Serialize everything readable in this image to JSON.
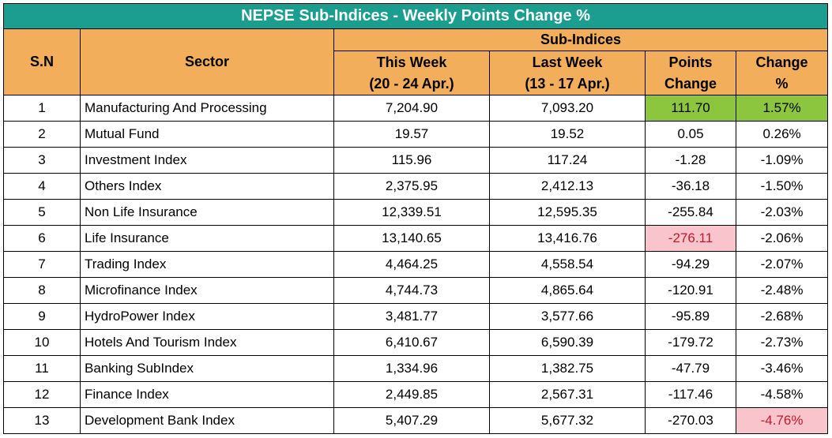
{
  "title": "NEPSE Sub-Indices - Weekly Points Change %",
  "headers": {
    "sn": "S.N",
    "sector": "Sector",
    "group": "Sub-Indices",
    "this_week_l1": "This Week",
    "this_week_l2": "(20 - 24 Apr.)",
    "last_week_l1": "Last Week",
    "last_week_l2": "(13 - 17 Apr.)",
    "points_l1": "Points",
    "points_l2": "Change",
    "change_l1": "Change",
    "change_l2": "%"
  },
  "highlight_colors": {
    "positive_bg": "#8cc63f",
    "negative_bg": "#f9c4cb",
    "negative_text": "#c01a2e",
    "title_bg": "#1b9e8f",
    "header_bg": "#f2ae5a"
  },
  "rows": [
    {
      "sn": "1",
      "sector": "Manufacturing And Processing",
      "this_week": "7,204.90",
      "last_week": "7,093.20",
      "points": "111.70",
      "change": "1.57%",
      "points_hl": "pos",
      "change_hl": "pos"
    },
    {
      "sn": "2",
      "sector": "Mutual Fund",
      "this_week": "19.57",
      "last_week": "19.52",
      "points": "0.05",
      "change": "0.26%",
      "points_hl": "",
      "change_hl": ""
    },
    {
      "sn": "3",
      "sector": "Investment Index",
      "this_week": "115.96",
      "last_week": "117.24",
      "points": "-1.28",
      "change": "-1.09%",
      "points_hl": "",
      "change_hl": ""
    },
    {
      "sn": "4",
      "sector": "Others Index",
      "this_week": "2,375.95",
      "last_week": "2,412.13",
      "points": "-36.18",
      "change": "-1.50%",
      "points_hl": "",
      "change_hl": ""
    },
    {
      "sn": "5",
      "sector": "Non Life Insurance",
      "this_week": "12,339.51",
      "last_week": "12,595.35",
      "points": "-255.84",
      "change": "-2.03%",
      "points_hl": "",
      "change_hl": ""
    },
    {
      "sn": "6",
      "sector": "Life Insurance",
      "this_week": "13,140.65",
      "last_week": "13,416.76",
      "points": "-276.11",
      "change": "-2.06%",
      "points_hl": "neg",
      "change_hl": ""
    },
    {
      "sn": "7",
      "sector": "Trading Index",
      "this_week": "4,464.25",
      "last_week": "4,558.54",
      "points": "-94.29",
      "change": "-2.07%",
      "points_hl": "",
      "change_hl": ""
    },
    {
      "sn": "8",
      "sector": "Microfinance Index",
      "this_week": "4,744.73",
      "last_week": "4,865.64",
      "points": "-120.91",
      "change": "-2.48%",
      "points_hl": "",
      "change_hl": ""
    },
    {
      "sn": "9",
      "sector": "HydroPower Index",
      "this_week": "3,481.77",
      "last_week": "3,577.66",
      "points": "-95.89",
      "change": "-2.68%",
      "points_hl": "",
      "change_hl": ""
    },
    {
      "sn": "10",
      "sector": "Hotels And Tourism Index",
      "this_week": "6,410.67",
      "last_week": "6,590.39",
      "points": "-179.72",
      "change": "-2.73%",
      "points_hl": "",
      "change_hl": ""
    },
    {
      "sn": "11",
      "sector": "Banking SubIndex",
      "this_week": "1,334.96",
      "last_week": "1,382.75",
      "points": "-47.79",
      "change": "-3.46%",
      "points_hl": "",
      "change_hl": ""
    },
    {
      "sn": "12",
      "sector": "Finance Index",
      "this_week": "2,449.85",
      "last_week": "2,567.31",
      "points": "-117.46",
      "change": "-4.58%",
      "points_hl": "",
      "change_hl": ""
    },
    {
      "sn": "13",
      "sector": "Development Bank Index",
      "this_week": "5,407.29",
      "last_week": "5,677.32",
      "points": "-270.03",
      "change": "-4.76%",
      "points_hl": "",
      "change_hl": "neg"
    }
  ]
}
